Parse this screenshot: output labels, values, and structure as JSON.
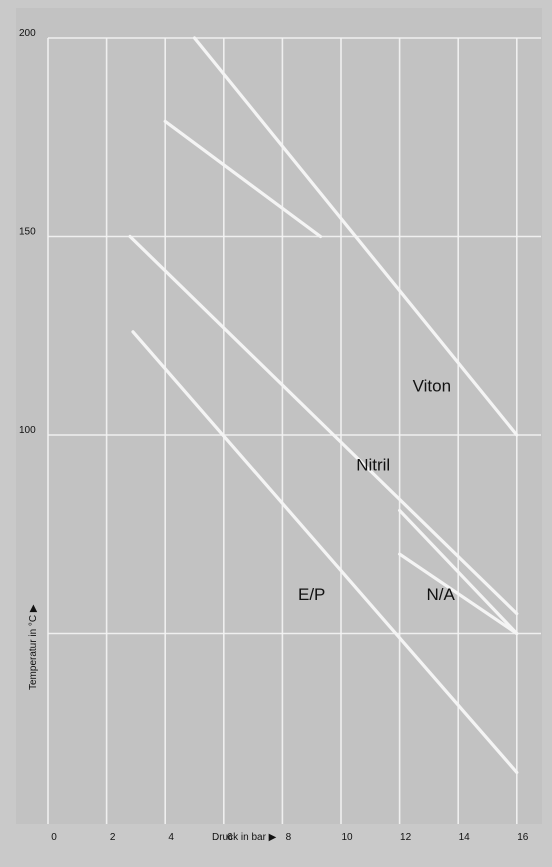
{
  "chart_data": {
    "type": "line",
    "xlabel": "Druck in bar ▶",
    "ylabel": "Temperatur in °C ▶",
    "xlim": [
      0,
      16
    ],
    "ylim": [
      0,
      200
    ],
    "grid": true,
    "x_ticks": [
      "0",
      "2",
      "4",
      "6",
      "8",
      "10",
      "12",
      "14",
      "16"
    ],
    "x_tick_values": [
      0,
      2,
      4,
      6,
      8,
      10,
      12,
      14,
      16
    ],
    "y_ticks": [
      "200",
      "150",
      "100"
    ],
    "y_tick_values": [
      200,
      150,
      100
    ],
    "y_gridlines": [
      50,
      100,
      150,
      200
    ],
    "series": [
      {
        "points": [
          [
            5,
            200
          ],
          [
            16,
            100
          ]
        ]
      },
      {
        "points": [
          [
            4,
            179
          ],
          [
            9.3,
            150
          ]
        ]
      },
      {
        "points": [
          [
            2.8,
            150
          ],
          [
            16,
            55
          ]
        ]
      },
      {
        "points": [
          [
            2.9,
            126
          ],
          [
            16,
            15
          ]
        ]
      },
      {
        "points": [
          [
            12,
            81
          ],
          [
            16,
            50
          ]
        ]
      },
      {
        "points": [
          [
            12,
            70
          ],
          [
            16,
            50
          ]
        ]
      }
    ],
    "annotations": [
      {
        "text": "Viton",
        "x": 13.1,
        "y": 111
      },
      {
        "text": "Nitril",
        "x": 11.1,
        "y": 91
      },
      {
        "text": "E/P",
        "x": 9,
        "y": 58.5
      },
      {
        "text": "N/A",
        "x": 13.4,
        "y": 58.5
      }
    ]
  },
  "colors": {
    "background": "#c9c9c9",
    "grid": "#f4f4f4",
    "series": "#f4f4f4",
    "text": "#111111"
  }
}
